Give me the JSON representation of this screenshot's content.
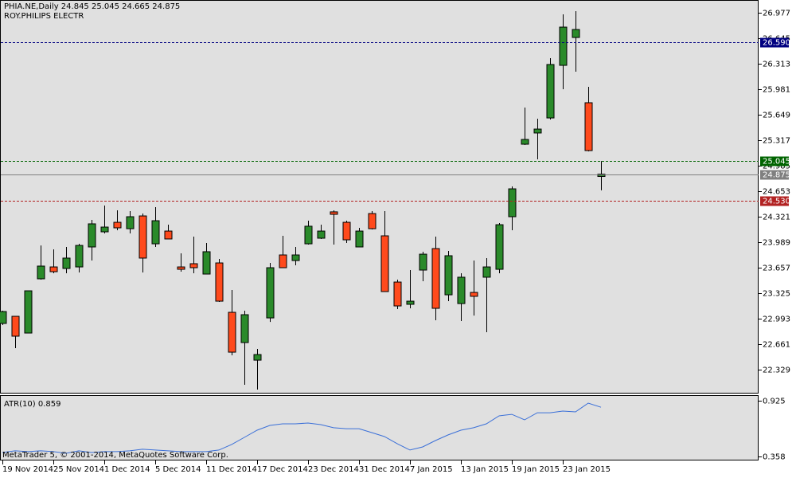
{
  "chart_data": [
    {
      "type": "candlestick",
      "title": "PHIA.NE,Daily  24.845 25.045 24.665 24.875",
      "subtitle": "ROY.PHILIPS ELECTR",
      "categories": [
        "19 Nov 2014",
        null,
        null,
        null,
        "25 Nov 2014",
        null,
        null,
        null,
        "1 Dec 2014",
        null,
        null,
        null,
        "5 Dec 2014",
        null,
        null,
        null,
        "11 Dec 2014",
        null,
        null,
        null,
        "17 Dec 2014",
        null,
        null,
        null,
        "23 Dec 2014",
        null,
        null,
        null,
        "31 Dec 2014",
        null,
        null,
        null,
        "7 Jan 2015",
        null,
        null,
        null,
        "13 Jan 2015",
        null,
        null,
        null,
        "19 Jan 2015",
        null,
        null,
        null,
        "23 Jan 2015",
        null,
        null,
        null
      ],
      "open": [
        22.931,
        23.024,
        22.806,
        23.512,
        23.667,
        23.647,
        23.667,
        23.927,
        24.124,
        24.248,
        24.165,
        24.331,
        23.968,
        24.134,
        23.667,
        23.709,
        23.574,
        23.719,
        23.076,
        22.682,
        22.453,
        23.003,
        23.823,
        23.75,
        23.968,
        24.041,
        24.384,
        24.248,
        23.927,
        24.362,
        24.072,
        23.47,
        23.18,
        23.626,
        23.906,
        23.304,
        23.19,
        23.335,
        23.533,
        23.636,
        24.321,
        25.265,
        25.411,
        25.607,
        26.292,
        26.655,
        25.805,
        24.845
      ],
      "high": [
        23.097,
        23.024,
        23.356,
        23.947,
        23.896,
        23.927,
        23.968,
        24.28,
        24.466,
        24.404,
        24.394,
        24.362,
        24.446,
        24.217,
        23.844,
        24.062,
        23.979,
        23.771,
        23.367,
        23.097,
        22.599,
        23.719,
        24.072,
        23.927,
        24.269,
        24.217,
        24.404,
        24.269,
        24.176,
        24.394,
        24.394,
        23.502,
        23.626,
        23.865,
        24.062,
        23.875,
        23.584,
        23.75,
        23.782,
        24.238,
        24.715,
        25.742,
        25.597,
        26.386,
        26.956,
        26.998,
        26.012,
        25.045
      ],
      "low": [
        22.91,
        22.609,
        22.806,
        23.502,
        23.584,
        23.584,
        23.595,
        23.75,
        24.103,
        24.145,
        24.103,
        23.595,
        23.927,
        24.031,
        23.605,
        23.584,
        23.574,
        23.211,
        22.516,
        22.132,
        22.07,
        22.951,
        23.657,
        23.688,
        23.958,
        24.031,
        23.958,
        23.979,
        23.927,
        24.155,
        23.346,
        23.118,
        23.128,
        23.481,
        22.972,
        23.221,
        22.962,
        23.034,
        22.817,
        23.584,
        24.145,
        25.255,
        25.068,
        25.587,
        25.981,
        26.209,
        25.172,
        24.665
      ],
      "close": [
        23.086,
        22.765,
        23.356,
        23.678,
        23.605,
        23.782,
        23.947,
        24.228,
        24.186,
        24.176,
        24.321,
        23.782,
        24.269,
        24.031,
        23.636,
        23.657,
        23.865,
        23.221,
        22.557,
        23.045,
        22.526,
        23.657,
        23.657,
        23.823,
        24.197,
        24.134,
        24.352,
        24.02,
        24.134,
        24.165,
        23.346,
        23.159,
        23.221,
        23.833,
        23.128,
        23.813,
        23.533,
        23.284,
        23.667,
        24.217,
        24.684,
        25.327,
        25.462,
        26.303,
        26.79,
        26.759,
        25.182,
        24.875
      ],
      "up_color": "#2a8a2a",
      "down_color": "#ff4a1c",
      "ylim": [
        22.018,
        27.143
      ],
      "yticks": [
        26.977,
        26.645,
        26.313,
        25.981,
        25.649,
        25.317,
        24.985,
        24.653,
        24.321,
        23.989,
        23.657,
        23.325,
        22.993,
        22.661,
        22.329
      ],
      "levels": [
        {
          "value": 26.59,
          "label": "26.590",
          "color": "#000080",
          "dashed": true
        },
        {
          "value": 25.045,
          "label": "25.045",
          "color": "#006400",
          "dashed": true
        },
        {
          "value": 24.875,
          "label": "24.875",
          "color": "#808080",
          "dashed": false
        },
        {
          "value": 24.53,
          "label": "24.530",
          "color": "#b22222",
          "dashed": true
        }
      ]
    },
    {
      "type": "line",
      "title": "ATR(10) 0.859",
      "annotation": "MetaTrader 5, © 2001-2014, MetaQuotes Software Corp.",
      "values": [
        0.398,
        0.415,
        0.407,
        0.415,
        0.407,
        0.39,
        0.415,
        0.398,
        0.407,
        0.407,
        0.415,
        0.431,
        0.423,
        0.415,
        0.407,
        0.407,
        0.407,
        0.423,
        0.48,
        0.552,
        0.625,
        0.674,
        0.69,
        0.69,
        0.698,
        0.682,
        0.65,
        0.641,
        0.641,
        0.601,
        0.56,
        0.488,
        0.423,
        0.455,
        0.52,
        0.577,
        0.625,
        0.65,
        0.69,
        0.771,
        0.787,
        0.731,
        0.803,
        0.803,
        0.82,
        0.812,
        0.901,
        0.859
      ],
      "color": "#3a6fd8",
      "ylim": [
        0.317,
        0.974
      ],
      "yticks": [
        0.925,
        0.358
      ]
    }
  ]
}
